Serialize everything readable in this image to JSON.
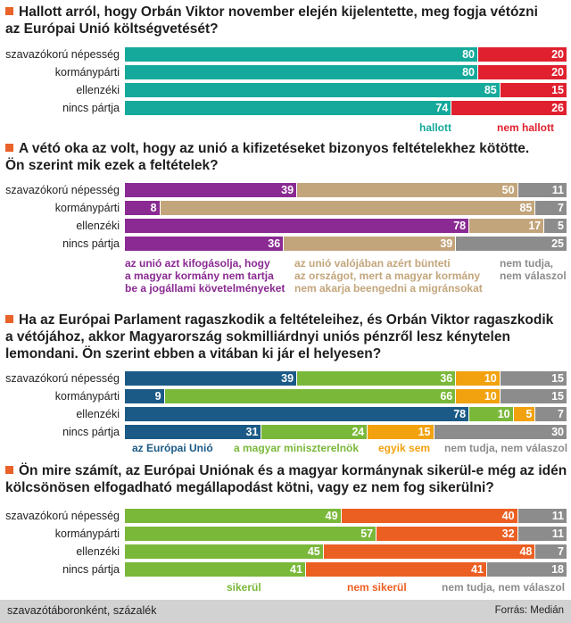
{
  "chart_data": [
    {
      "type": "bar",
      "stacked": true,
      "orientation": "horizontal",
      "title": "Hallott arról, hogy Orbán Viktor november elején kijelentette, meg fogja vétózni az Európai Unió költségvetését?",
      "categories": [
        "szavazókorú népesség",
        "kormánypárti",
        "ellenzéki",
        "nincs pártja"
      ],
      "series": [
        {
          "name": "hallott",
          "color": "#15a99b",
          "values": [
            80,
            80,
            85,
            74
          ]
        },
        {
          "name": "nem hallott",
          "color": "#e0202e",
          "values": [
            20,
            20,
            15,
            26
          ]
        }
      ],
      "xlim": [
        0,
        100
      ]
    },
    {
      "type": "bar",
      "stacked": true,
      "orientation": "horizontal",
      "title": "A vétó oka az volt, hogy az unió a kifizetéseket bizonyos feltételekhez kötötte. Ön szerint mik ezek a feltételek?",
      "categories": [
        "szavazókorú népesség",
        "kormánypárti",
        "ellenzéki",
        "nincs pártja"
      ],
      "series": [
        {
          "name": "az unió azt kifogásolja, hogy a magyar kormány nem tartja be a jogállami követelményeket",
          "color": "#8a2a92",
          "values": [
            39,
            8,
            78,
            36
          ]
        },
        {
          "name": "az unió valójában azért bünteti az országot, mert a magyar kormány nem akarja beengedni a migránsokat",
          "color": "#c3a57b",
          "values": [
            50,
            85,
            17,
            39
          ]
        },
        {
          "name": "nem tudja, nem válaszol",
          "color": "#8c8c8c",
          "values": [
            11,
            7,
            5,
            25
          ]
        }
      ],
      "xlim": [
        0,
        100
      ]
    },
    {
      "type": "bar",
      "stacked": true,
      "orientation": "horizontal",
      "title": "Ha az Európai Parlament ragaszkodik a feltételeihez, és Orbán Viktor ragaszkodik a vétójához, akkor Magyarország sokmilliárdnyi uniós pénzről lesz kénytelen lemondani. Ön szerint ebben a vitában ki jár el helyesen?",
      "categories": [
        "szavazókorú népesség",
        "kormánypárti",
        "ellenzéki",
        "nincs pártja"
      ],
      "series": [
        {
          "name": "az Európai Unió",
          "color": "#1b5a86",
          "values": [
            39,
            9,
            78,
            31
          ]
        },
        {
          "name": "a magyar miniszterelnök",
          "color": "#7ab83a",
          "values": [
            36,
            66,
            10,
            24
          ]
        },
        {
          "name": "egyik sem",
          "color": "#f2a20f",
          "values": [
            10,
            10,
            5,
            15
          ]
        },
        {
          "name": "nem tudja, nem válaszol",
          "color": "#8c8c8c",
          "values": [
            15,
            15,
            7,
            30
          ]
        }
      ],
      "xlim": [
        0,
        100
      ]
    },
    {
      "type": "bar",
      "stacked": true,
      "orientation": "horizontal",
      "title": "Ön mire számít, az Európai Uniónak és a magyar kormánynak sikerül-e még az idén kölcsönösen elfogadható megállapodást kötni, vagy ez nem fog sikerülni?",
      "categories": [
        "szavazókorú népesség",
        "kormánypárti",
        "ellenzéki",
        "nincs pártja"
      ],
      "series": [
        {
          "name": "sikerül",
          "color": "#7ab83a",
          "values": [
            49,
            57,
            45,
            41
          ]
        },
        {
          "name": "nem sikerül",
          "color": "#ec5f22",
          "values": [
            40,
            32,
            48,
            41
          ]
        },
        {
          "name": "nem tudja, nem válaszol",
          "color": "#8c8c8c",
          "values": [
            11,
            11,
            7,
            18
          ]
        }
      ],
      "xlim": [
        0,
        100
      ]
    }
  ],
  "legend_text": [
    [
      {
        "lines": [
          "hallott"
        ],
        "color": "#15a99b"
      },
      {
        "lines": [
          "nem hallott"
        ],
        "color": "#e0202e"
      }
    ],
    [
      {
        "lines": [
          "az unió azt kifogásolja, hogy",
          "a magyar kormány nem tartja",
          "be a jogállami követelményeket"
        ],
        "color": "#8a2a92"
      },
      {
        "lines": [
          "az unió valójában azért bünteti",
          "az országot, mert a magyar kormány",
          "nem akarja beengedni a migránsokat"
        ],
        "color": "#c3a57b"
      },
      {
        "lines": [
          "nem tudja,",
          "nem válaszol"
        ],
        "color": "#8c8c8c"
      }
    ],
    [
      {
        "lines": [
          "az Európai Unió"
        ],
        "color": "#1b5a86"
      },
      {
        "lines": [
          "a magyar miniszterelnök"
        ],
        "color": "#7ab83a"
      },
      {
        "lines": [
          "egyik sem"
        ],
        "color": "#f2a20f"
      },
      {
        "lines": [
          "nem tudja, nem válaszol"
        ],
        "color": "#8c8c8c"
      }
    ],
    [
      {
        "lines": [
          "sikerül"
        ],
        "color": "#7ab83a"
      },
      {
        "lines": [
          "nem sikerül"
        ],
        "color": "#ec5f22"
      },
      {
        "lines": [
          "nem tudja, nem válaszol"
        ],
        "color": "#8c8c8c"
      }
    ]
  ],
  "footer": {
    "note": "szavazótáboronként, százalék",
    "source": "Forrás: Medián"
  }
}
